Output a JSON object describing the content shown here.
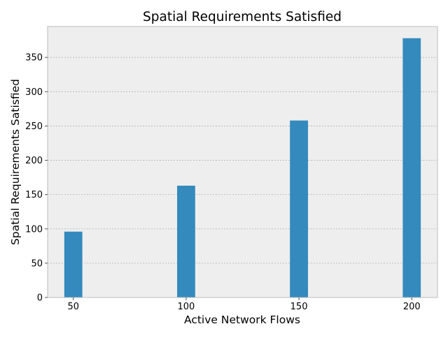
{
  "chart_data": {
    "type": "bar",
    "title": "Spatial Requirements Satisfied",
    "xlabel": "Active Network Flows",
    "ylabel": "Spatial Requirements Satisfied",
    "x": [
      50,
      100,
      150,
      200
    ],
    "x_tick_labels": [
      "50",
      "100",
      "150",
      "200"
    ],
    "values": [
      96,
      163,
      258,
      378
    ],
    "ylim": [
      0,
      395
    ],
    "xlim": [
      38.6,
      211.4
    ],
    "y_ticks": [
      0,
      50,
      100,
      150,
      200,
      250,
      300,
      350
    ],
    "y_tick_labels": [
      "0",
      "50",
      "100",
      "150",
      "200",
      "250",
      "300",
      "350"
    ],
    "bar_width": 8,
    "grid": true,
    "legend": "none",
    "colors": {
      "bar": "#348abd",
      "plot_background": "#eeeeee",
      "grid": "#b2b2b2",
      "frame": "#bcbcbc"
    }
  }
}
